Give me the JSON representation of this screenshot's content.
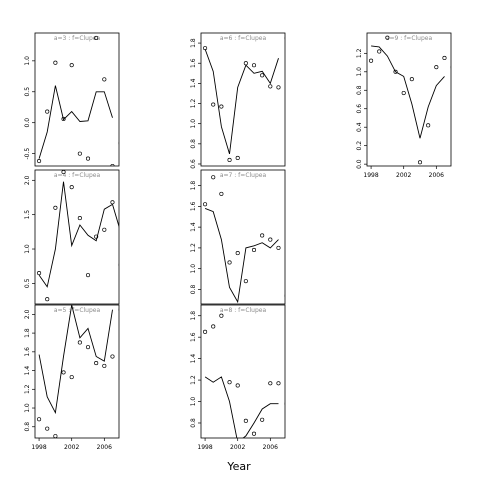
{
  "figure": {
    "xlabel": "Year"
  },
  "chart_data": [
    {
      "type": "line",
      "id": "p1",
      "title": "a=3 : f=Clupea",
      "xlim": [
        1997.5,
        2007.8
      ],
      "ylim": [
        -0.7,
        1.45
      ],
      "yticks": [
        -0.5,
        0.0,
        0.5,
        1.0
      ],
      "ytick_labels": [
        "-0.5",
        "0.0",
        "0.5",
        "1.0"
      ],
      "xticks": [],
      "xtick_labels": [],
      "series": [
        {
          "kind": "line",
          "x": [
            1998,
            1999,
            2000,
            2001,
            2002,
            2003,
            2004,
            2005,
            2006,
            2007
          ],
          "y": [
            -0.58,
            -0.15,
            0.6,
            0.05,
            0.18,
            0.02,
            0.03,
            0.5,
            0.5,
            0.08
          ]
        },
        {
          "kind": "points",
          "x": [
            1998,
            1999,
            2000,
            2001,
            2002,
            2003,
            2004,
            2005,
            2006,
            2007,
            2008
          ],
          "y": [
            -0.62,
            0.18,
            0.97,
            0.06,
            0.93,
            -0.5,
            -0.58,
            1.37,
            0.7,
            -0.7,
            -0.33
          ]
        }
      ]
    },
    {
      "type": "line",
      "id": "p2",
      "title": "a=6 : f=Clupea",
      "xlim": [
        1997.5,
        2007.8
      ],
      "ylim": [
        0.58,
        1.9
      ],
      "yticks": [
        0.6,
        0.8,
        1.0,
        1.2,
        1.4,
        1.6,
        1.8
      ],
      "ytick_labels": [
        "0.6",
        "0.8",
        "1.0",
        "1.2",
        "1.4",
        "1.6",
        "1.8"
      ],
      "xticks": [],
      "xtick_labels": [],
      "series": [
        {
          "kind": "line",
          "x": [
            1998,
            1999,
            2000,
            2001,
            2002,
            2003,
            2004,
            2005,
            2006,
            2007
          ],
          "y": [
            1.74,
            1.52,
            0.97,
            0.7,
            1.36,
            1.58,
            1.5,
            1.52,
            1.4,
            1.65
          ]
        },
        {
          "kind": "points",
          "x": [
            1998,
            1999,
            2000,
            2001,
            2002,
            2003,
            2004,
            2005,
            2006,
            2007,
            2008
          ],
          "y": [
            1.75,
            1.19,
            1.17,
            0.64,
            0.66,
            1.6,
            1.58,
            1.48,
            1.37,
            1.36,
            1.85
          ]
        }
      ]
    },
    {
      "type": "line",
      "id": "p3",
      "title": "a=9 : f=Clupea",
      "xlim": [
        1997.5,
        2007.8
      ],
      "ylim": [
        -0.02,
        1.42
      ],
      "yticks": [
        0.0,
        0.2,
        0.4,
        0.6,
        0.8,
        1.0,
        1.2
      ],
      "ytick_labels": [
        "0.0",
        "0.2",
        "0.4",
        "0.6",
        "0.8",
        "1.0",
        "1.2"
      ],
      "xticks": [
        1998,
        2002,
        2006
      ],
      "xtick_labels": [
        "1998",
        "2002",
        "2006"
      ],
      "series": [
        {
          "kind": "line",
          "x": [
            1998,
            1999,
            2000,
            2001,
            2002,
            2003,
            2004,
            2005,
            2006,
            2007
          ],
          "y": [
            1.28,
            1.27,
            1.17,
            1.0,
            0.95,
            0.65,
            0.28,
            0.62,
            0.85,
            0.95
          ]
        },
        {
          "kind": "points",
          "x": [
            1998,
            1999,
            2000,
            2001,
            2002,
            2003,
            2004,
            2005,
            2006,
            2007,
            2008
          ],
          "y": [
            1.12,
            1.22,
            1.37,
            1.0,
            0.77,
            0.92,
            0.02,
            0.42,
            1.05,
            1.15,
            1.05
          ]
        }
      ]
    },
    {
      "type": "line",
      "id": "p4",
      "title": "a=4 : f=Clupea",
      "xlim": [
        1997.5,
        2007.8
      ],
      "ylim": [
        0.2,
        2.15
      ],
      "yticks": [
        0.5,
        1.0,
        1.5,
        2.0
      ],
      "ytick_labels": [
        "0.5",
        "1.0",
        "1.5",
        "2.0"
      ],
      "xticks": [],
      "xtick_labels": [],
      "series": [
        {
          "kind": "line",
          "x": [
            1998,
            1999,
            2000,
            2001,
            2002,
            2003,
            2004,
            2005,
            2006,
            2007
          ],
          "y": [
            0.62,
            0.45,
            1.0,
            1.98,
            1.05,
            1.35,
            1.2,
            1.12,
            1.58,
            1.65
          ]
        },
        {
          "kind": "line",
          "x": [
            2007,
            2008
          ],
          "y": [
            1.65,
            1.25
          ]
        },
        {
          "kind": "points",
          "x": [
            1998,
            1999,
            2000,
            2001,
            2002,
            2003,
            2004,
            2005,
            2006,
            2007,
            2008
          ],
          "y": [
            0.65,
            0.27,
            1.6,
            2.12,
            1.9,
            1.45,
            0.62,
            1.18,
            1.28,
            1.68,
            0.77
          ]
        }
      ]
    },
    {
      "type": "line",
      "id": "p5",
      "title": "a=7 : f=Clupea",
      "xlim": [
        1997.5,
        2007.8
      ],
      "ylim": [
        0.66,
        1.95
      ],
      "yticks": [
        0.8,
        1.0,
        1.2,
        1.4,
        1.6,
        1.8
      ],
      "ytick_labels": [
        "0.8",
        "1.0",
        "1.2",
        "1.4",
        "1.6",
        "1.8"
      ],
      "xticks": [],
      "xtick_labels": [],
      "series": [
        {
          "kind": "line",
          "x": [
            1998,
            1999,
            2000,
            2001,
            2002,
            2003,
            2004,
            2005,
            2006,
            2007
          ],
          "y": [
            1.58,
            1.55,
            1.28,
            0.82,
            0.68,
            1.2,
            1.22,
            1.25,
            1.2,
            1.28
          ]
        },
        {
          "kind": "points",
          "x": [
            1998,
            1999,
            2000,
            2001,
            2002,
            2003,
            2004,
            2005,
            2006,
            2007,
            2008
          ],
          "y": [
            1.62,
            1.88,
            1.72,
            1.06,
            1.15,
            0.88,
            1.18,
            1.32,
            1.28,
            1.2,
            0.74
          ]
        }
      ]
    },
    {
      "type": "line",
      "id": "p7",
      "title": "a=5 : f=Clupea",
      "xlim": [
        1997.5,
        2007.8
      ],
      "ylim": [
        0.68,
        2.1
      ],
      "yticks": [
        0.8,
        1.0,
        1.2,
        1.4,
        1.6,
        1.8,
        2.0
      ],
      "ytick_labels": [
        "0.8",
        "1.0",
        "1.2",
        "1.4",
        "1.6",
        "1.8",
        "2.0"
      ],
      "xticks": [
        1998,
        2002,
        2006
      ],
      "xtick_labels": [
        "1998",
        "2002",
        "2006"
      ],
      "series": [
        {
          "kind": "line",
          "x": [
            1998,
            1999,
            2000,
            2001,
            2002,
            2003,
            2004,
            2005,
            2006,
            2007
          ],
          "y": [
            1.57,
            1.12,
            0.95,
            1.55,
            2.1,
            1.75,
            1.85,
            1.55,
            1.5,
            2.05
          ]
        },
        {
          "kind": "points",
          "x": [
            1998,
            1999,
            2000,
            2001,
            2002,
            2003,
            2004,
            2005,
            2006,
            2007,
            2008
          ],
          "y": [
            0.88,
            0.78,
            0.7,
            1.38,
            1.33,
            1.7,
            1.65,
            1.48,
            1.45,
            1.55,
            2.05
          ]
        }
      ]
    },
    {
      "type": "line",
      "id": "p8",
      "title": "a=8 : f=Clupea",
      "xlim": [
        1997.5,
        2007.8
      ],
      "ylim": [
        0.66,
        1.9
      ],
      "yticks": [
        0.8,
        1.0,
        1.2,
        1.4,
        1.6,
        1.8
      ],
      "ytick_labels": [
        "0.8",
        "1.0",
        "1.2",
        "1.4",
        "1.6",
        "1.8"
      ],
      "xticks": [
        1998,
        2002,
        2006
      ],
      "xtick_labels": [
        "1998",
        "2002",
        "2006"
      ],
      "series": [
        {
          "kind": "line",
          "x": [
            1998,
            1999,
            2000,
            2001,
            2002,
            2003,
            2004,
            2005,
            2006,
            2007
          ],
          "y": [
            1.23,
            1.18,
            1.23,
            1.0,
            0.62,
            0.68,
            0.8,
            0.93,
            0.98,
            0.98
          ]
        },
        {
          "kind": "points",
          "x": [
            1998,
            1999,
            2000,
            2001,
            2002,
            2003,
            2004,
            2005,
            2006,
            2007,
            2008
          ],
          "y": [
            1.65,
            1.7,
            1.8,
            1.18,
            1.15,
            0.82,
            0.7,
            0.83,
            1.17,
            1.17,
            0.98
          ]
        }
      ]
    }
  ]
}
